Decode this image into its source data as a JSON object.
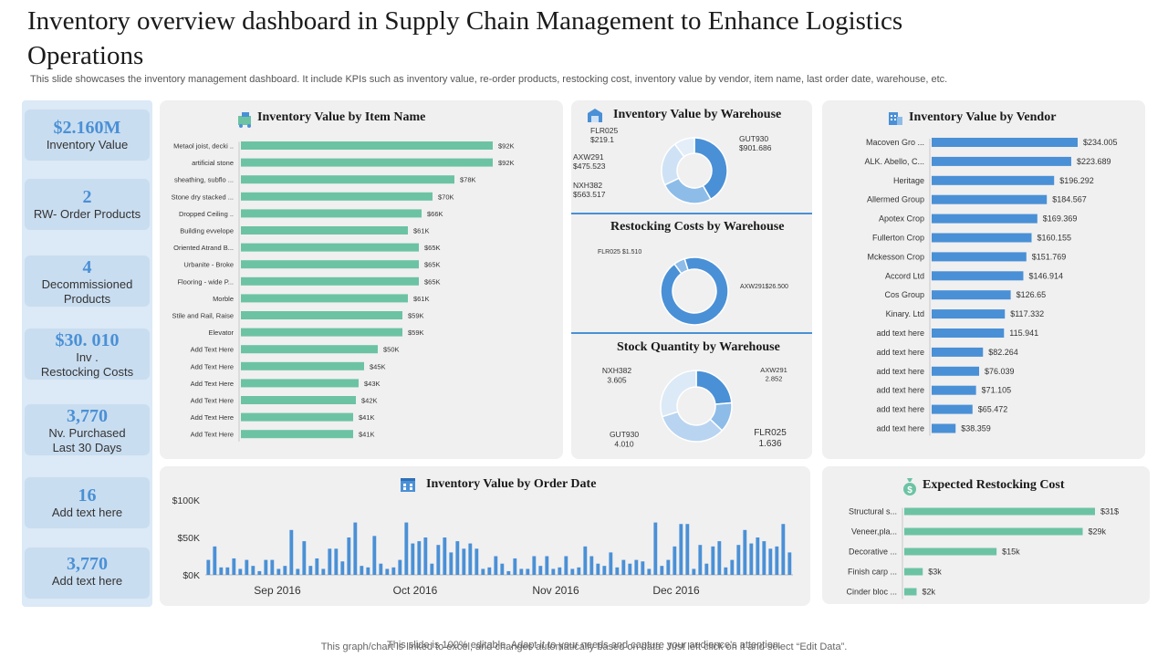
{
  "page": {
    "title": "Inventory overview dashboard in Supply Chain Management to Enhance Logistics Operations",
    "subtitle": "This slide showcases the inventory management dashboard. It include KPIs such as inventory value, re-order products, restocking cost, inventory value by vendor, item name, last order date, warehouse,  etc.",
    "footer_1": "This graph/chart is linked to excel, and changes automatically based on data. Just left click on it and select “Edit Data”.",
    "footer_2": "This slide is 100% editable. Adapt it to your needs and capture your audience's attention."
  },
  "kpis": [
    {
      "value": "$2.160M",
      "label": "Inventory  Value"
    },
    {
      "value": "2",
      "label": "RW- Order Products"
    },
    {
      "value": "4",
      "label": "Decommissioned Products"
    },
    {
      "value": "$30. 010",
      "label": "Inv .\nRestocking Costs"
    },
    {
      "value": "3,770",
      "label": "Nv. Purchased\nLast 30 Days"
    },
    {
      "value": "16",
      "label": "Add text here"
    },
    {
      "value": "3,770",
      "label": "Add text here"
    }
  ],
  "colors": {
    "teal": "#6cc3a4",
    "blue": "#4a90d6",
    "mid_blue": "#8dbce8",
    "light_blue": "#cfe2f5",
    "panel": "#f0f0f0",
    "kpi_bg": "#c9ddf0"
  },
  "icons": {
    "item": "warehouse-cart-icon",
    "warehouse": "warehouse-icon",
    "vendor": "vendor-building-icon",
    "order_date": "calendar-building-icon",
    "restocking": "money-bag-icon"
  },
  "chart_data": [
    {
      "id": "item",
      "type": "bar",
      "orientation": "horizontal",
      "title": "Inventory Value by Item Name",
      "categories": [
        "Metaol joist, decki ..",
        "artificial stone",
        "sheathing,  subflo ...",
        "Stone dry stacked ...",
        "Dropped Ceiling ..",
        "Building evvelope",
        "Oriented Atrand B...",
        "Urbanite - Broke",
        "Flooring - wide P...",
        "Morble",
        "Stile and Rail, Raise",
        "Elevator",
        "Add Text Here",
        "Add Text Here",
        "Add Text Here",
        "Add Text Here",
        "Add Text Here",
        "Add Text Here"
      ],
      "values": [
        92,
        92,
        78,
        70,
        66,
        61,
        65,
        65,
        65,
        61,
        59,
        59,
        50,
        45,
        43,
        42,
        41,
        41
      ],
      "data_labels": [
        "$92K",
        "$92K",
        "$78K",
        "$70K",
        "$66K",
        "$61K",
        "$65K",
        "$65K",
        "$65K",
        "$61K",
        "$59K",
        "$59K",
        "$50K",
        "$45K",
        "$43K",
        "$42K",
        "$41K",
        "$41K"
      ],
      "color": "#6cc3a4"
    },
    {
      "id": "warehouse",
      "type": "pie",
      "title": "Inventory Value by Warehouse",
      "categories": [
        "GUT930",
        "NXH382",
        "AXW291",
        "FLR025"
      ],
      "values": [
        901.686,
        563.517,
        475.523,
        219.1
      ],
      "labels": [
        {
          "name": "GUT930",
          "value": "$901.686"
        },
        {
          "name": "NXH382",
          "value": "$563.517"
        },
        {
          "name": "AXW291",
          "value": "$475.523"
        },
        {
          "name": "FLR025",
          "value": "$219.1"
        }
      ],
      "colors": [
        "#4a90d6",
        "#8dbce8",
        "#cfe2f5",
        "#e3eef9"
      ]
    },
    {
      "id": "restock",
      "type": "pie",
      "title": "Restocking Costs by Warehouse",
      "categories": [
        "AXW291",
        "FLR025"
      ],
      "values": [
        26.5,
        1.51
      ],
      "labels": [
        {
          "name": "AXW291",
          "value": "$26.500"
        },
        {
          "name": "FLR025",
          "value": "$1.510"
        }
      ],
      "colors": [
        "#4a90d6",
        "#8dbce8"
      ]
    },
    {
      "id": "stock",
      "type": "pie",
      "title": "Stock Quantity by Warehouse",
      "categories": [
        "AXW291",
        "FLR025",
        "GUT930",
        "NXH382"
      ],
      "values": [
        2.852,
        1.636,
        4.01,
        3.605
      ],
      "labels": [
        {
          "name": "AXW291",
          "value": "2.852"
        },
        {
          "name": "FLR025",
          "value": "1.636"
        },
        {
          "name": "GUT930",
          "value": "4.010"
        },
        {
          "name": "NXH382",
          "value": "3.605"
        }
      ],
      "colors": [
        "#4a90d6",
        "#8dbce8",
        "#b8d4f0",
        "#dce9f6"
      ]
    },
    {
      "id": "vendor",
      "type": "bar",
      "orientation": "horizontal",
      "title": "Inventory Value by  Vendor",
      "categories": [
        "Macoven Gro ...",
        "ALK. Abello, C...",
        "Heritage",
        "Allermed Group",
        "Apotex Crop",
        "Fullerton Crop",
        "Mckesson Crop",
        "Accord Ltd",
        "Cos Group",
        "Kinary. Ltd",
        "add text here",
        "add text here",
        "add text here",
        "add text here",
        "add text here",
        "add text here"
      ],
      "values": [
        234.005,
        223.689,
        196.292,
        184.567,
        169.369,
        160.155,
        151.769,
        146.914,
        126.65,
        117.332,
        115.941,
        82.264,
        76.039,
        71.105,
        65.472,
        38.359
      ],
      "data_labels": [
        "$234.005",
        "$223.689",
        "$196.292",
        "$184.567",
        "$169.369",
        "$160.155",
        "$151.769",
        "$146.914",
        "$126.65",
        "$117.332",
        "115.941",
        "$82.264",
        "$76.039",
        "$71.105",
        "$65.472",
        "$38.359"
      ],
      "color": "#4a90d6"
    },
    {
      "id": "order_date",
      "type": "bar",
      "title": "Inventory Value by Order Date",
      "y_ticks": [
        "$100K",
        "$50K",
        "$0K"
      ],
      "ylim": [
        0,
        100
      ],
      "x_ticks": [
        "Sep 2016",
        "Oct 2016",
        "Nov 2016",
        "Dec 2016"
      ],
      "values": [
        20,
        38,
        10,
        10,
        22,
        8,
        20,
        12,
        5,
        20,
        20,
        8,
        12,
        60,
        8,
        45,
        12,
        22,
        8,
        35,
        35,
        18,
        50,
        70,
        12,
        10,
        52,
        15,
        8,
        10,
        20,
        70,
        42,
        45,
        50,
        15,
        40,
        50,
        30,
        45,
        35,
        42,
        35,
        8,
        10,
        25,
        15,
        5,
        22,
        8,
        8,
        25,
        12,
        25,
        8,
        10,
        25,
        8,
        10,
        38,
        25,
        15,
        12,
        30,
        10,
        20,
        15,
        20,
        18,
        8,
        70,
        12,
        20,
        38,
        68,
        68,
        8,
        40,
        15,
        38,
        45,
        10,
        20,
        40,
        60,
        42,
        50,
        45,
        35,
        38,
        68,
        30
      ],
      "color": "#4a90d6"
    },
    {
      "id": "expected",
      "type": "bar",
      "orientation": "horizontal",
      "title": "Expected Restocking Cost",
      "categories": [
        "Structural s...",
        "Veneer,pla...",
        "Decorative ...",
        "Finish carp ...",
        "Cinder bloc ..."
      ],
      "values": [
        31,
        29,
        15,
        3,
        2
      ],
      "data_labels": [
        "$31$",
        "$29k",
        "$15k",
        "$3k",
        "$2k"
      ],
      "color": "#6cc3a4"
    }
  ]
}
